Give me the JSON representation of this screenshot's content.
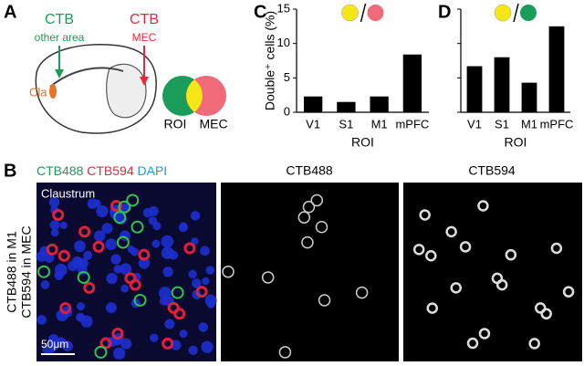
{
  "panels": {
    "a": {
      "letter": "A",
      "ctb_left": "CTB",
      "other_area": "other area",
      "ctb_right": "CTB",
      "mec": "MEC",
      "cla": "Cla",
      "roi": "ROI",
      "venn_mec": "MEC"
    },
    "b": {
      "letter": "B",
      "stain_green": "CTB488",
      "stain_red": "CTB594",
      "stain_blue": "DAPI",
      "region": "Claustrum",
      "side_line1": "CTB488 in M1",
      "side_line2": "CTB594 in MEC",
      "scale": "50μm",
      "title_mid": "CTB488",
      "title_right": "CTB594"
    }
  },
  "chart_data": [
    {
      "type": "bar",
      "letter": "C",
      "y_label": "Double⁺ cells (%)",
      "x_label": "ROI",
      "categories": [
        "V1",
        "S1",
        "M1",
        "mPFC"
      ],
      "values": [
        2.3,
        1.5,
        2.3,
        8.4
      ],
      "color": "#000000",
      "ylim": [
        0,
        15
      ],
      "yticks": [
        0,
        5,
        10,
        15
      ],
      "icon_colors": [
        "#f5e616",
        "#f06a7a"
      ]
    },
    {
      "type": "bar",
      "letter": "D",
      "x_label": "ROI",
      "categories": [
        "V1",
        "S1",
        "M1",
        "mPFC"
      ],
      "values": [
        6.7,
        8.0,
        4.3,
        12.5
      ],
      "color": "#000000",
      "ylim": [
        0,
        15
      ],
      "yticks": [
        0,
        5,
        10,
        15
      ],
      "icon_colors": [
        "#f5e616",
        "#1a9c5a"
      ]
    }
  ]
}
